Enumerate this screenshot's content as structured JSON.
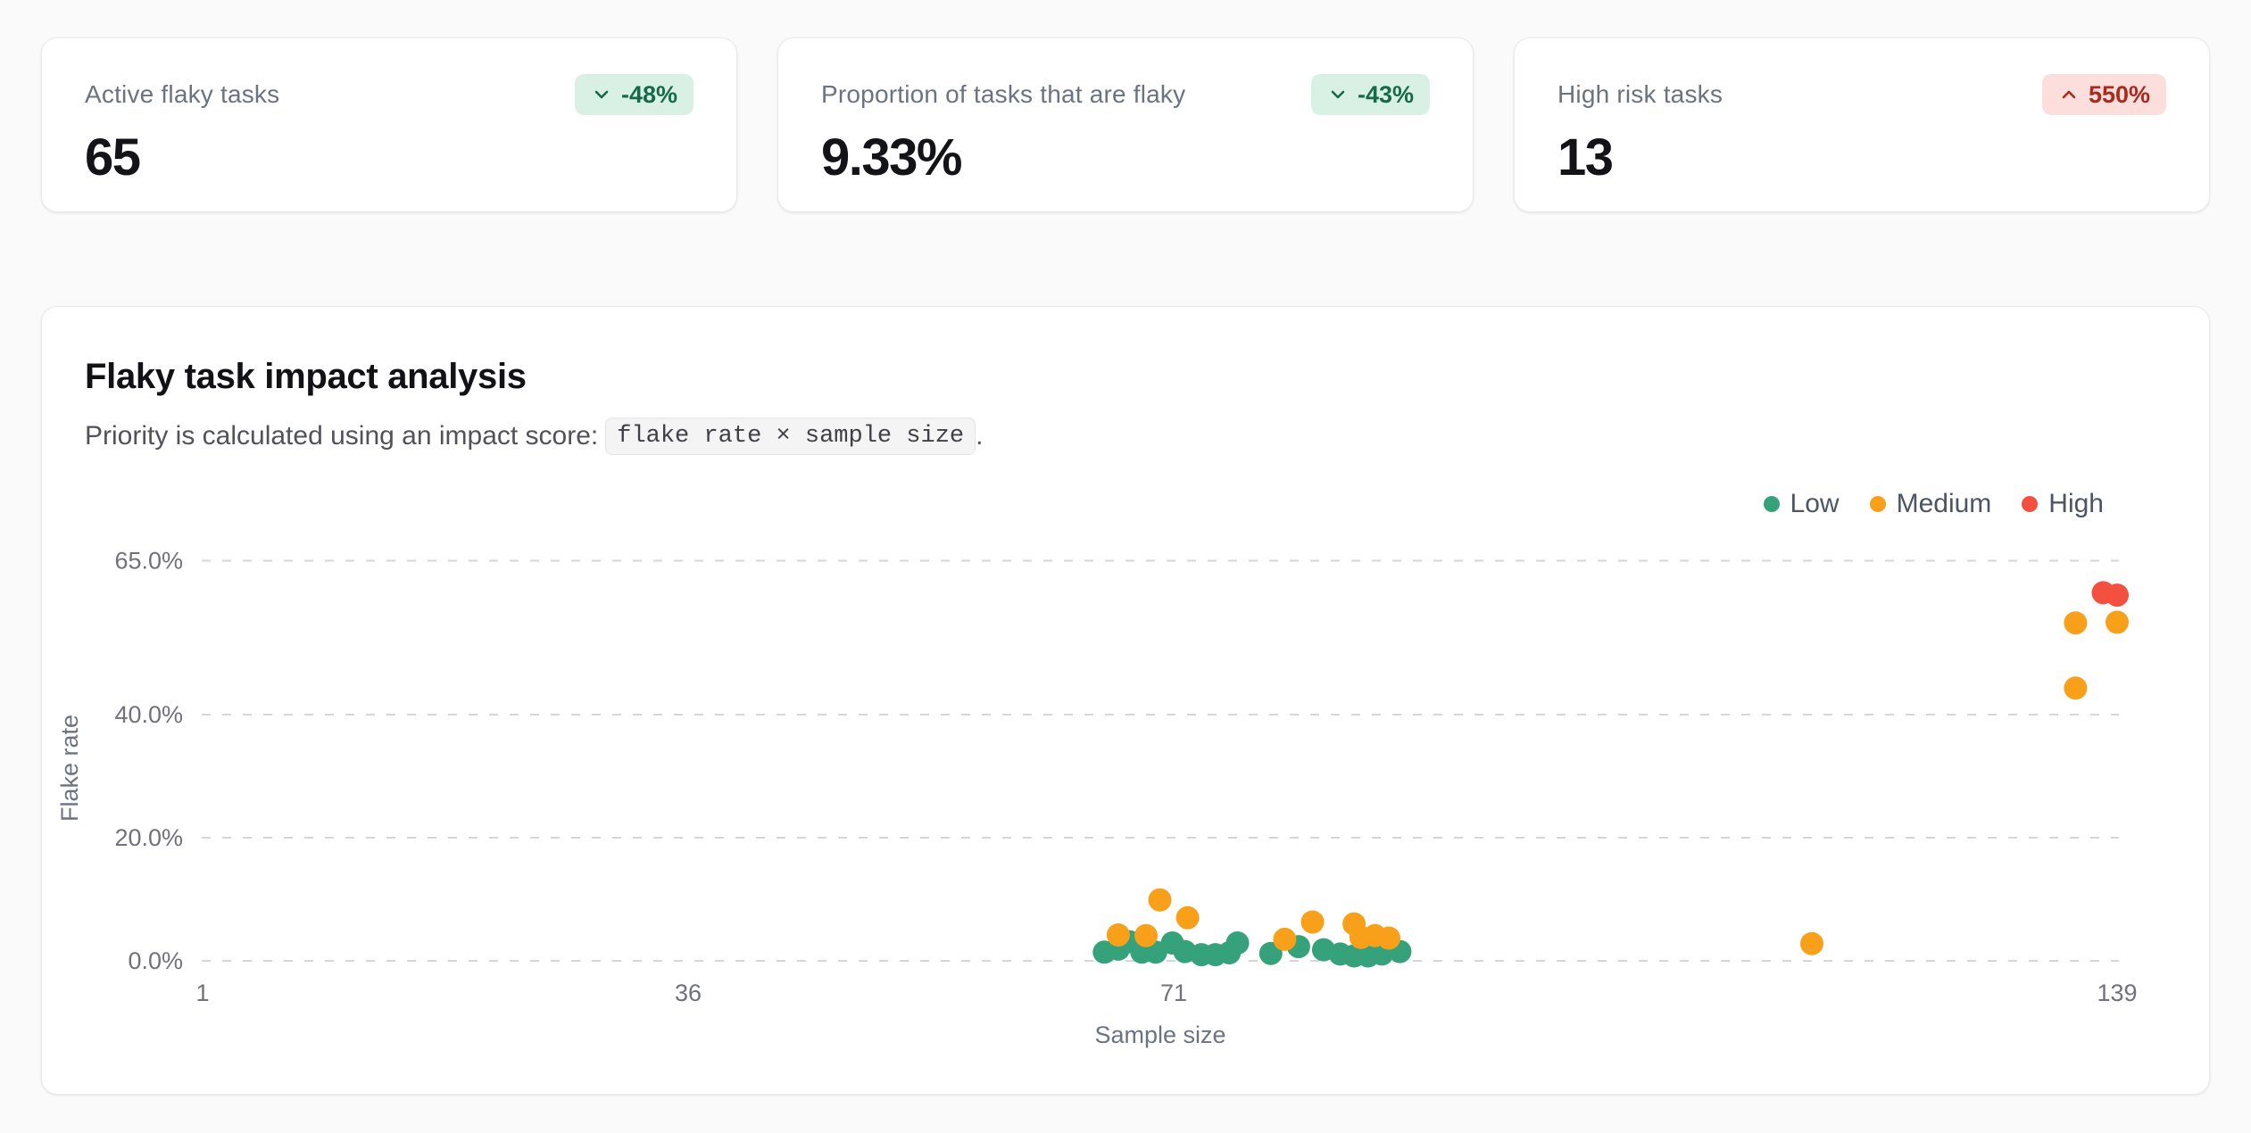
{
  "colors": {
    "page-bg": "#fafafa",
    "badge_positive_bg": "#d9f1e5",
    "badge_positive_text": "#17694b",
    "badge_negative_bg": "#fcdfdd",
    "badge_negative_text": "#a82b20"
  },
  "stats": {
    "cards": [
      {
        "label": "Active flaky tasks",
        "value": "65",
        "delta": "-48%",
        "direction": "down",
        "tone": "positive"
      },
      {
        "label": "Proportion of tasks that are flaky",
        "value": "9.33%",
        "delta": "-43%",
        "direction": "down",
        "tone": "positive"
      },
      {
        "label": "High risk tasks",
        "value": "13",
        "delta": "550%",
        "direction": "up",
        "tone": "negative"
      }
    ]
  },
  "chart": {
    "title": "Flaky task impact analysis",
    "subtitle_prefix": "Priority is calculated using an impact score:",
    "subtitle_code": "flake rate × sample size",
    "subtitle_suffix": "."
  },
  "chart_data": {
    "type": "scatter",
    "title": "Flaky task impact analysis",
    "xlabel": "Sample size",
    "ylabel": "Flake rate",
    "xlim": [
      1,
      139
    ],
    "ylim": [
      0,
      65
    ],
    "x_ticks": [
      1,
      36,
      71,
      139
    ],
    "y_ticks": [
      {
        "value": 0,
        "label": "0.0%"
      },
      {
        "value": 20,
        "label": "20.0%"
      },
      {
        "value": 40,
        "label": "40.0%"
      },
      {
        "value": 65,
        "label": "65.0%"
      }
    ],
    "grid": "horizontal-dashed",
    "legend_position": "top-right",
    "series": [
      {
        "name": "Low",
        "color": "#35a27b",
        "points": [
          [
            66,
            1.4
          ],
          [
            67,
            1.9
          ],
          [
            67.8,
            3.1
          ],
          [
            68.7,
            1.4
          ],
          [
            69.7,
            1.4
          ],
          [
            70.9,
            2.9
          ],
          [
            71.8,
            1.5
          ],
          [
            73,
            1.0
          ],
          [
            74,
            1.0
          ],
          [
            75,
            1.3
          ],
          [
            75.6,
            2.9
          ],
          [
            78,
            1.2
          ],
          [
            80,
            2.3
          ],
          [
            81.8,
            1.8
          ],
          [
            83,
            1.1
          ],
          [
            84,
            0.8
          ],
          [
            85,
            0.8
          ],
          [
            86,
            1.1
          ],
          [
            87.3,
            1.5
          ]
        ]
      },
      {
        "name": "Medium",
        "color": "#f9a01b",
        "points": [
          [
            67,
            4.2
          ],
          [
            69,
            4.1
          ],
          [
            70,
            9.9
          ],
          [
            72,
            7.0
          ],
          [
            79,
            3.5
          ],
          [
            81,
            6.3
          ],
          [
            84,
            6.0
          ],
          [
            84.5,
            3.8
          ],
          [
            85.5,
            4.1
          ],
          [
            86.5,
            3.7
          ],
          [
            117,
            2.8
          ],
          [
            136,
            44.3
          ],
          [
            136,
            54.9
          ],
          [
            139,
            55.0
          ]
        ]
      },
      {
        "name": "High",
        "color": "#f4503f",
        "points": [
          [
            138,
            59.8
          ],
          [
            139,
            59.4
          ]
        ]
      }
    ]
  }
}
